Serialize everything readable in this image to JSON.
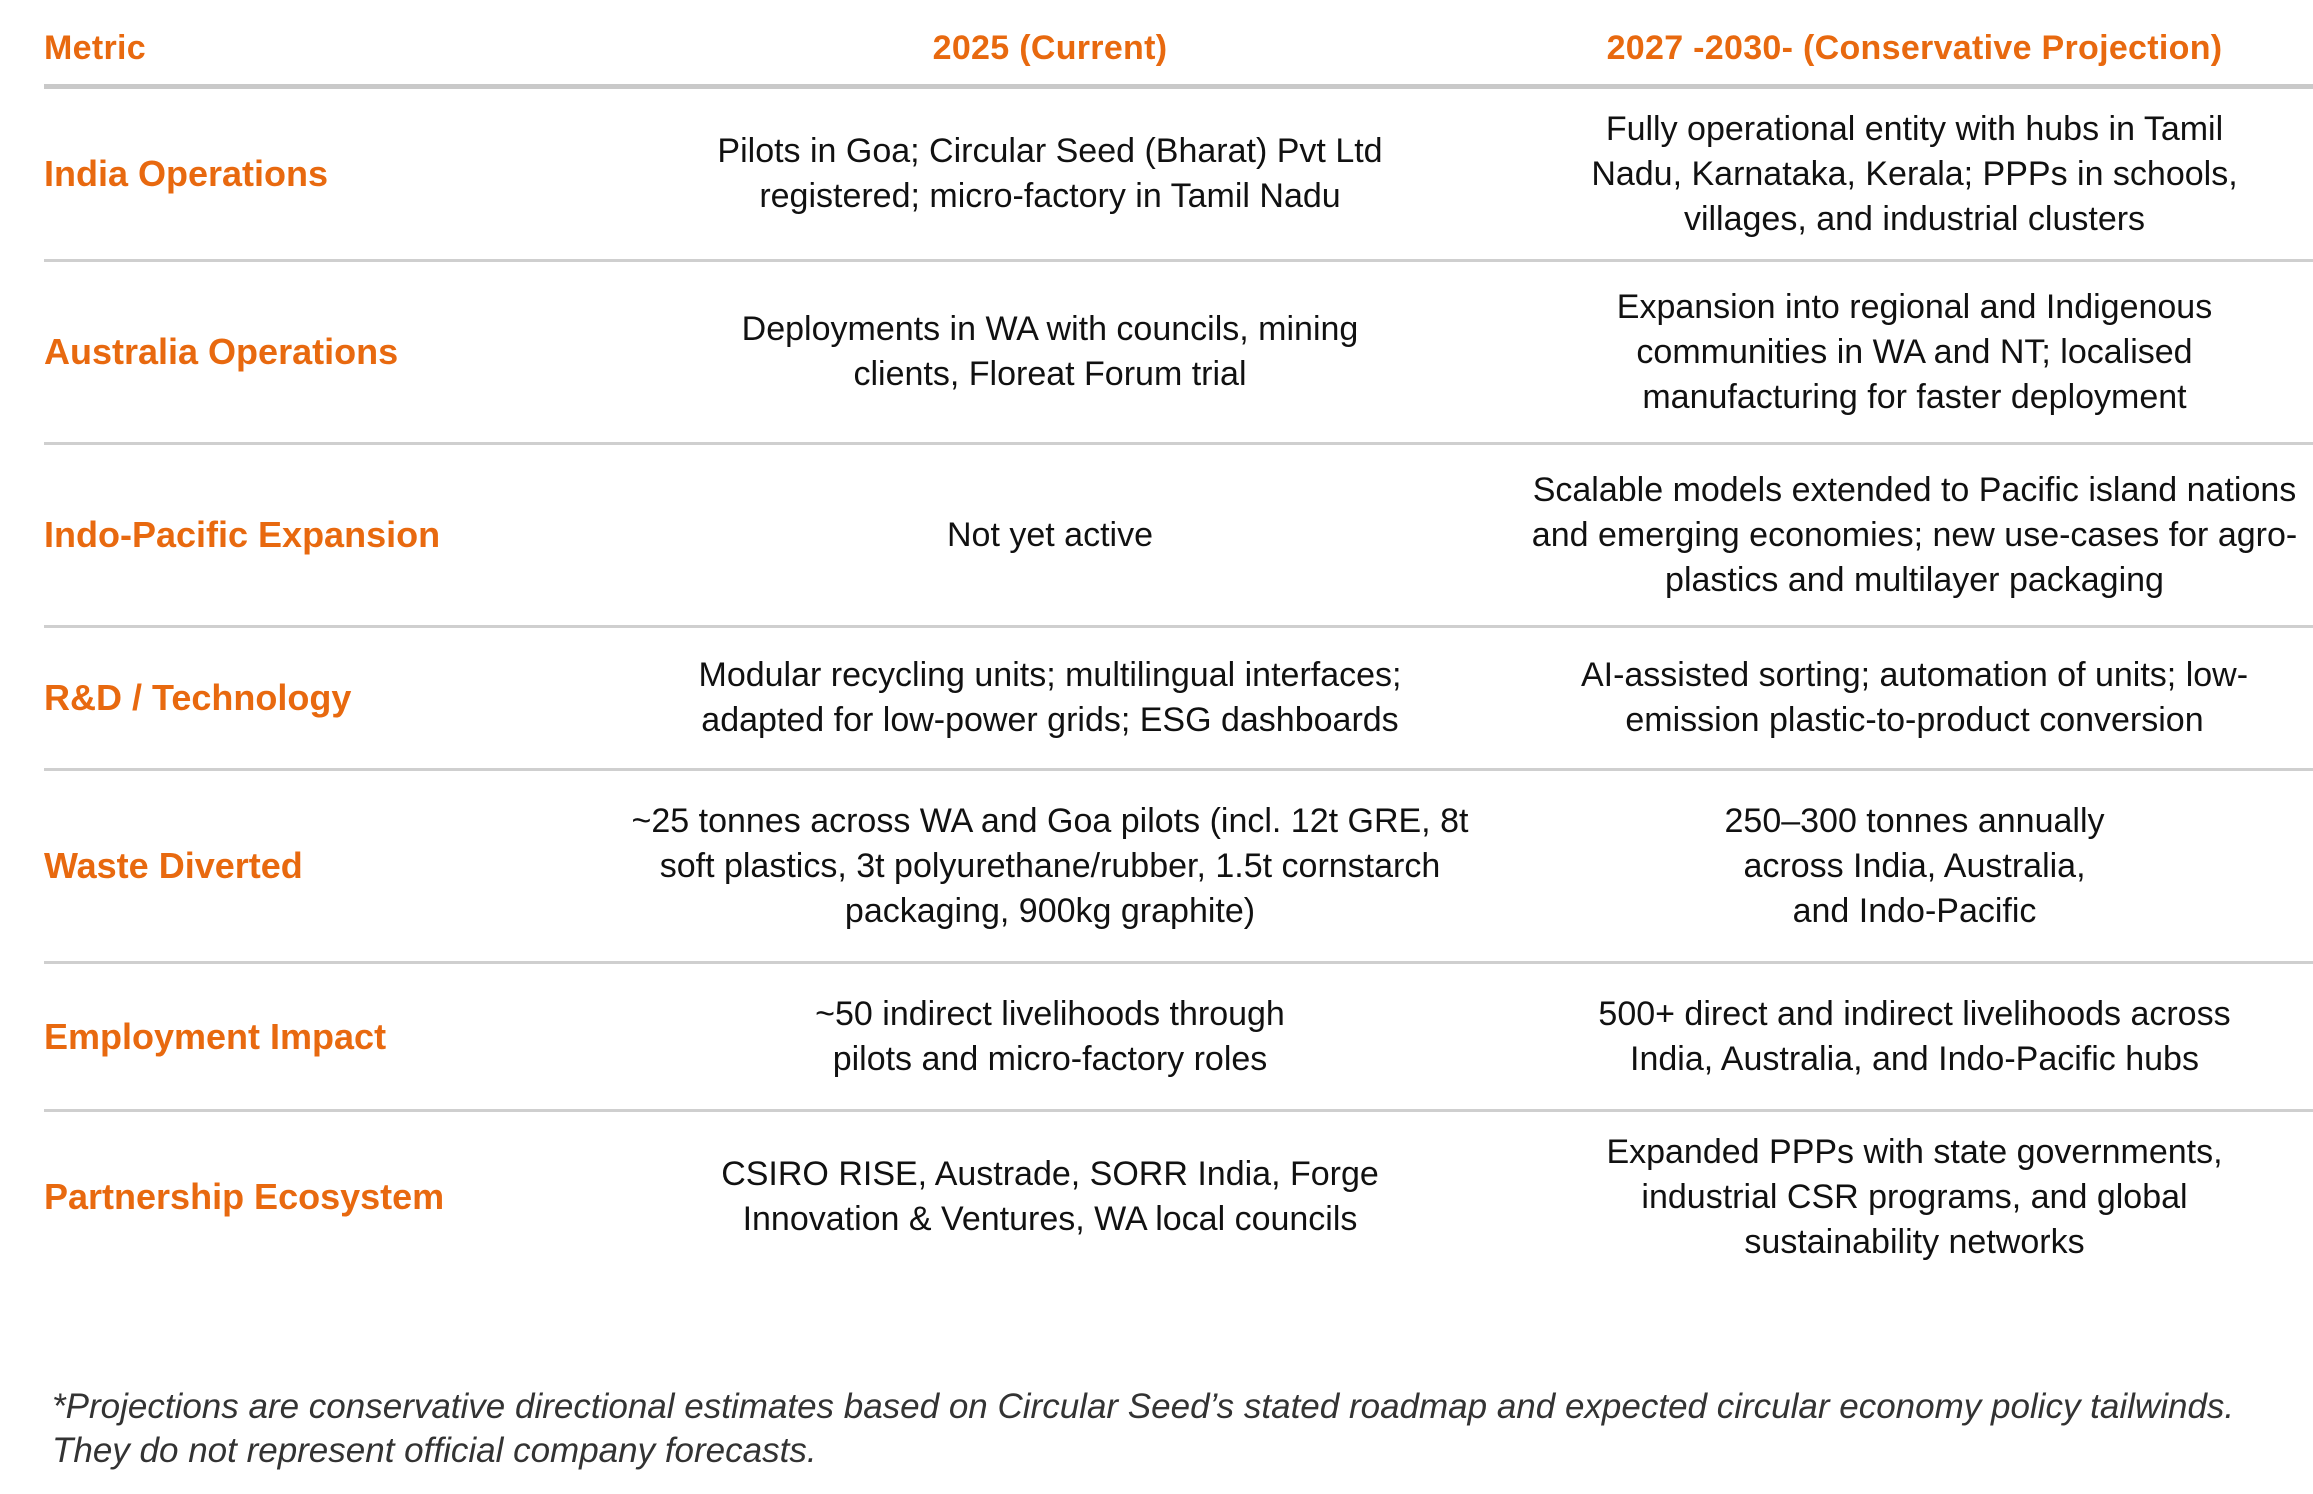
{
  "header": {
    "metric": "Metric",
    "current": "2025 (Current)",
    "projection": "2027 -2030- (Conservative Projection)"
  },
  "rows": [
    {
      "metric": "India Operations",
      "current": "Pilots in Goa; Circular Seed (Bharat) Pvt Ltd registered; micro-factory in Tamil Nadu",
      "projection": "Fully operational entity with hubs in Tamil Nadu, Karnataka, Kerala; PPPs in schools, villages, and industrial clusters"
    },
    {
      "metric": "Australia Operations",
      "current": "Deployments in WA with councils, mining clients, Floreat Forum trial",
      "projection": "Expansion into regional and Indigenous communities in WA and NT; localised manufacturing for faster deployment"
    },
    {
      "metric": "Indo-Pacific Expansion",
      "current": "Not yet active",
      "projection": "Scalable models extended to Pacific island nations and emerging economies; new use-cases for agro-plastics and multilayer packaging"
    },
    {
      "metric": "R&D / Technology",
      "current": "Modular recycling units; multilingual interfaces; adapted for low-power grids; ESG dashboards",
      "projection": "AI-assisted sorting; automation of units; low-emission plastic-to-product conversion"
    },
    {
      "metric": "Waste Diverted",
      "current": "~25 tonnes across WA and Goa pilots (incl. 12t GRE, 8t soft plastics, 3t polyurethane/rubber, 1.5t cornstarch packaging, 900kg graphite)",
      "projection": "250–300 tonnes annually across India, Australia, and Indo-Pacific"
    },
    {
      "metric": "Employment Impact",
      "current": "~50 indirect livelihoods through pilots and micro-factory roles",
      "projection": "500+ direct and indirect livelihoods across India, Australia, and Indo-Pacific hubs"
    },
    {
      "metric": "Partnership Ecosystem",
      "current": "CSIRO RISE, Austrade, SORR India, Forge Innovation & Ventures, WA local councils",
      "projection": "Expanded PPPs with state governments, industrial CSR programs, and global sustainability networks"
    }
  ],
  "footnote": "*Projections are conservative directional estimates based on Circular Seed’s stated roadmap and expected circular economy policy tailwinds. They do not represent official company forecasts.",
  "colors": {
    "accent": "#e8690f",
    "divider": "#cfcfcf",
    "text": "#111111"
  }
}
